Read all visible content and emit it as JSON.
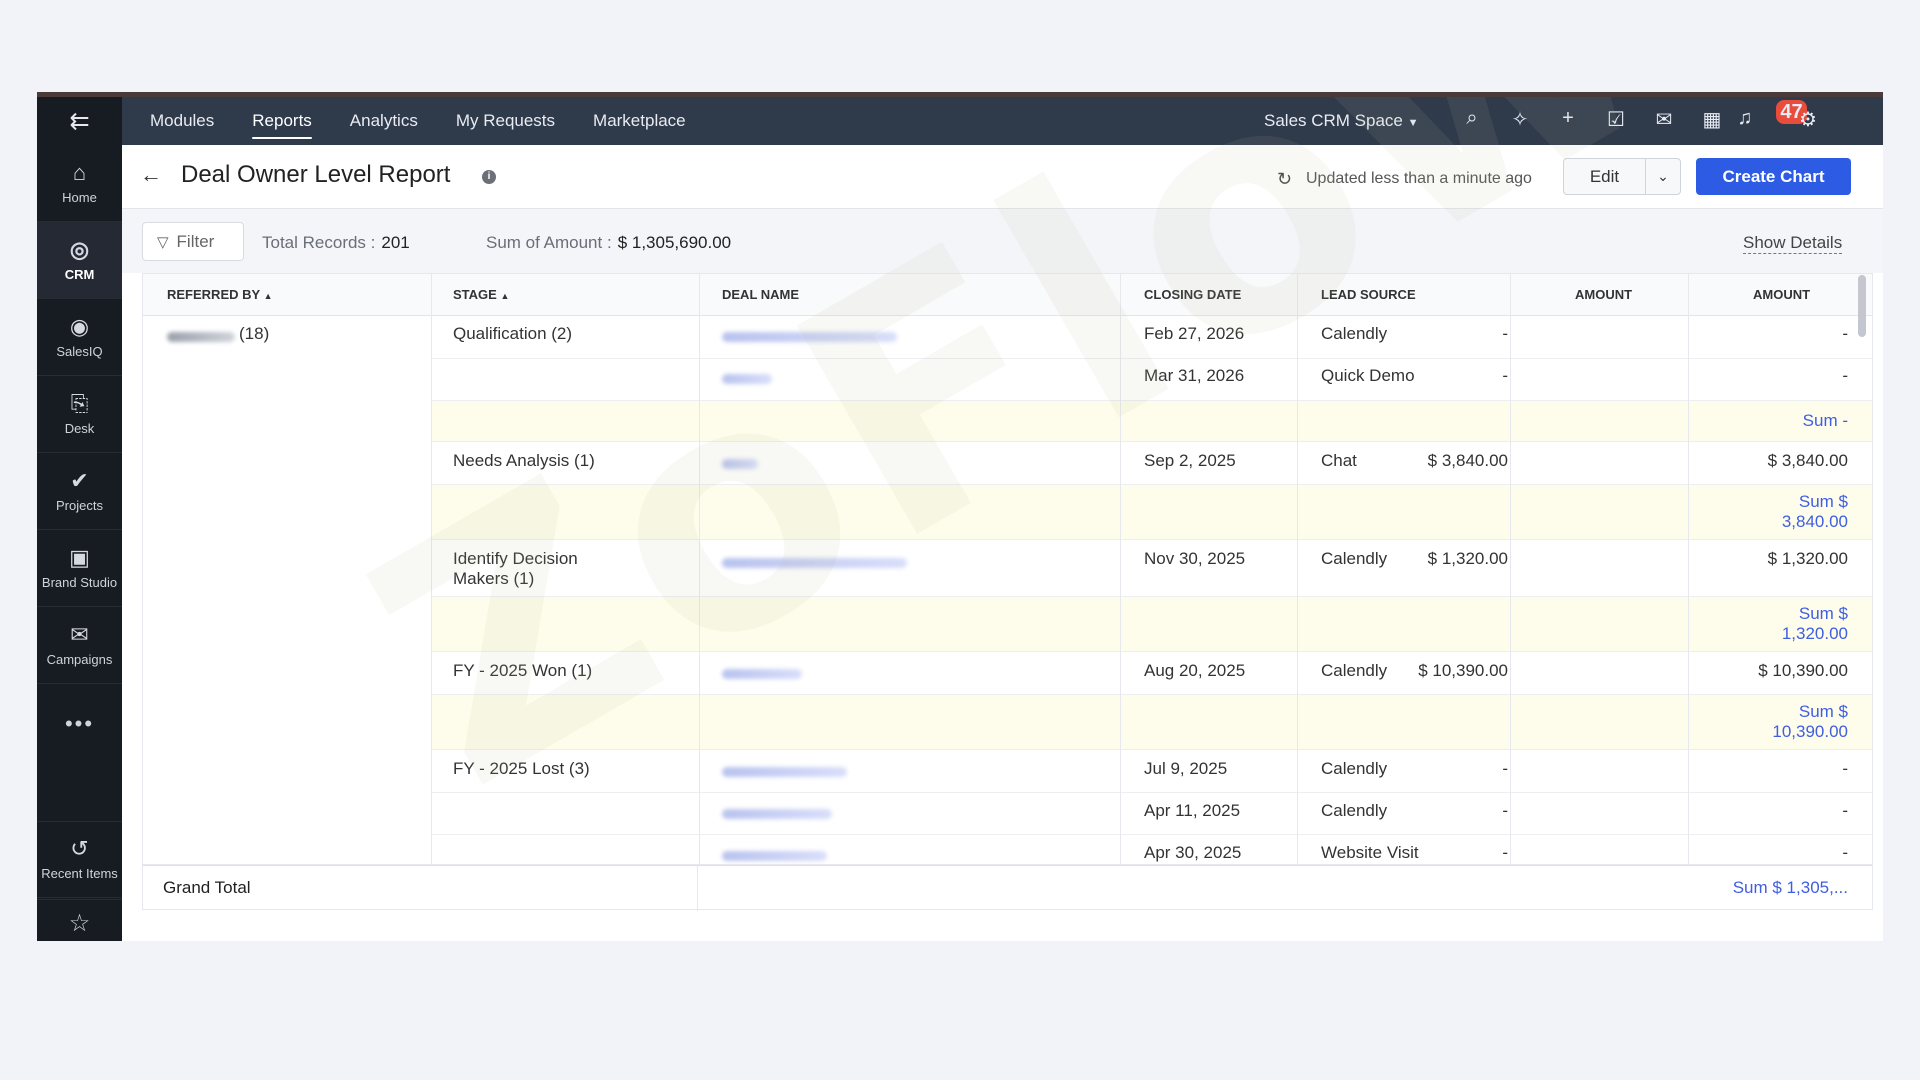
{
  "rail": {
    "items": [
      {
        "label": "Home",
        "icon": "home-icon"
      },
      {
        "label": "CRM",
        "icon": "crm-icon"
      },
      {
        "label": "SalesIQ",
        "icon": "salesiq-icon"
      },
      {
        "label": "Desk",
        "icon": "desk-icon"
      },
      {
        "label": "Projects",
        "icon": "check-icon"
      },
      {
        "label": "Brand Studio",
        "icon": "brand-studio-icon"
      },
      {
        "label": "Campaigns",
        "icon": "megaphone-icon"
      }
    ],
    "more": "•••",
    "recent": "Recent Items"
  },
  "topnav": {
    "tabs": [
      "Modules",
      "Reports",
      "Analytics",
      "My Requests",
      "Marketplace"
    ],
    "space": "Sales CRM Space",
    "notification_count": "47"
  },
  "header": {
    "title": "Deal Owner Level Report",
    "updated": "Updated less than a minute ago",
    "edit": "Edit",
    "create_chart": "Create Chart"
  },
  "summary": {
    "filter": "Filter",
    "total_records_label": "Total Records :",
    "total_records_value": "201",
    "sum_label": "Sum of Amount :",
    "sum_value": "$ 1,305,690.00",
    "show_details": "Show Details"
  },
  "table": {
    "headers": [
      "REFERRED BY",
      "STAGE",
      "DEAL NAME",
      "CLOSING DATE",
      "LEAD SOURCE",
      "AMOUNT",
      "AMOUNT"
    ],
    "referrer_count": "(18)",
    "rows": [
      {
        "stage": "Qualification (2)",
        "date": "Feb 27, 2026",
        "source": "Calendly",
        "amt1": "-",
        "amt2": "-"
      },
      {
        "stage": "",
        "date": "Mar 31, 2026",
        "source": "Quick Demo",
        "amt1": "-",
        "amt2": "-"
      },
      {
        "stage": "Needs Analysis (1)",
        "date": "Sep 2, 2025",
        "source": "Chat",
        "amt1": "$ 3,840.00",
        "amt2": "$ 3,840.00"
      },
      {
        "stage_line1": "Identify Decision",
        "stage_line2": "Makers (1)",
        "date": "Nov 30, 2025",
        "source": "Calendly",
        "amt1": "$ 1,320.00",
        "amt2": "$ 1,320.00"
      },
      {
        "stage": "FY - 2025 Won (1)",
        "date": "Aug 20, 2025",
        "source": "Calendly",
        "amt1": "$ 10,390.00",
        "amt2": "$ 10,390.00"
      },
      {
        "stage": "FY - 2025 Lost (3)",
        "date": "Jul 9, 2025",
        "source": "Calendly",
        "amt1": "-",
        "amt2": "-"
      },
      {
        "stage": "",
        "date": "Apr 11, 2025",
        "source": "Calendly",
        "amt1": "-",
        "amt2": "-"
      },
      {
        "stage": "",
        "date": "Apr 30, 2025",
        "source": "Website Visit",
        "amt1": "-",
        "amt2": "-"
      }
    ],
    "subtotals": [
      {
        "line1": "Sum -",
        "line2": ""
      },
      {
        "line1": "Sum $",
        "line2": "3,840.00"
      },
      {
        "line1": "Sum $",
        "line2": "1,320.00"
      },
      {
        "line1": "Sum $",
        "line2": "10,390.00"
      }
    ],
    "grand_total_label": "Grand Total",
    "grand_total_value": "Sum $ 1,305,..."
  },
  "watermark": "ZoFlow",
  "colors": {
    "rail": "#171b22",
    "topnav": "#2f3a4b",
    "primary": "#2d5be3",
    "sum_text": "#3f5ee0",
    "subtotal_bg": "#fefdeb"
  }
}
